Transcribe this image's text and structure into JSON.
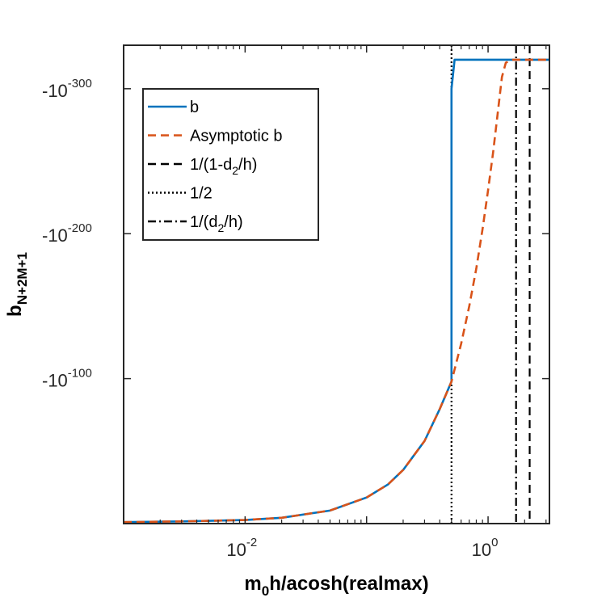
{
  "chart_data": {
    "type": "line",
    "title": "",
    "xlabel": {
      "main": "m",
      "sub": "0",
      "rest": "h/acosh(realmax)"
    },
    "ylabel": {
      "main": "b",
      "sub": "N+2M+1"
    },
    "xscale": "log",
    "xlim": [
      0.001,
      3.2
    ],
    "ylim_log_magnitude": [
      0,
      330
    ],
    "y_sign": "negative",
    "grid": false,
    "legend_position": "top-left",
    "x_ticks": [
      {
        "base": "10",
        "exp": "-2",
        "value": 0.01
      },
      {
        "base": "10",
        "exp": "0",
        "value": 1
      }
    ],
    "y_ticks": [
      {
        "base": "-10",
        "exp": "-100",
        "value": 100
      },
      {
        "base": "-10",
        "exp": "-200",
        "value": 200
      },
      {
        "base": "-10",
        "exp": "-300",
        "value": 300
      }
    ],
    "series": [
      {
        "name": "b",
        "color": "#0072BD",
        "style": "solid",
        "points": [
          [
            0.001,
            1
          ],
          [
            0.003,
            1.5
          ],
          [
            0.01,
            2.5
          ],
          [
            0.02,
            4
          ],
          [
            0.05,
            9
          ],
          [
            0.1,
            18
          ],
          [
            0.15,
            27
          ],
          [
            0.2,
            37
          ],
          [
            0.3,
            57
          ],
          [
            0.4,
            79
          ],
          [
            0.5,
            98
          ],
          [
            0.5,
            100
          ],
          [
            0.5,
            140
          ],
          [
            0.5,
            200
          ],
          [
            0.5,
            300
          ],
          [
            0.53,
            320
          ],
          [
            3.2,
            320
          ]
        ]
      },
      {
        "name": "Asymptotic b",
        "color": "#D95319",
        "style": "dashed",
        "points": [
          [
            0.001,
            1
          ],
          [
            0.003,
            1.5
          ],
          [
            0.01,
            2.5
          ],
          [
            0.02,
            4
          ],
          [
            0.05,
            9
          ],
          [
            0.1,
            18
          ],
          [
            0.15,
            27
          ],
          [
            0.2,
            37
          ],
          [
            0.3,
            57
          ],
          [
            0.4,
            79
          ],
          [
            0.5,
            98
          ],
          [
            0.6,
            124
          ],
          [
            0.7,
            150
          ],
          [
            0.8,
            176
          ],
          [
            0.9,
            203
          ],
          [
            1.0,
            230
          ],
          [
            1.1,
            256
          ],
          [
            1.2,
            283
          ],
          [
            1.3,
            308
          ],
          [
            1.4,
            318
          ],
          [
            1.6,
            320
          ],
          [
            2.0,
            320
          ],
          [
            3.2,
            320
          ]
        ]
      }
    ],
    "vlines": [
      {
        "name": "1/(1-d2/h)",
        "label": {
          "main": "1/(1-d",
          "sub": "2",
          "rest": "/h)"
        },
        "x": 2.2,
        "style": "dashed",
        "color": "#000000"
      },
      {
        "name": "1/2",
        "label": {
          "main": "1/2",
          "sub": "",
          "rest": ""
        },
        "x": 0.5,
        "style": "dotted",
        "color": "#000000"
      },
      {
        "name": "1/(d2/h)",
        "label": {
          "main": "1/(d",
          "sub": "2",
          "rest": "/h)"
        },
        "x": 1.7,
        "style": "dashdot",
        "color": "#000000"
      }
    ],
    "legend": [
      {
        "series": "b",
        "label": {
          "main": "b",
          "sub": "",
          "rest": ""
        }
      },
      {
        "series": "Asymptotic b",
        "label": {
          "main": "Asymptotic b",
          "sub": "",
          "rest": ""
        }
      },
      {
        "series": "1/(1-d2/h)",
        "label": {
          "main": "1/(1-d",
          "sub": "2",
          "rest": "/h)"
        }
      },
      {
        "series": "1/2",
        "label": {
          "main": "1/2",
          "sub": "",
          "rest": ""
        }
      },
      {
        "series": "1/(d2/h)",
        "label": {
          "main": "1/(d",
          "sub": "2",
          "rest": "/h)"
        }
      }
    ]
  }
}
